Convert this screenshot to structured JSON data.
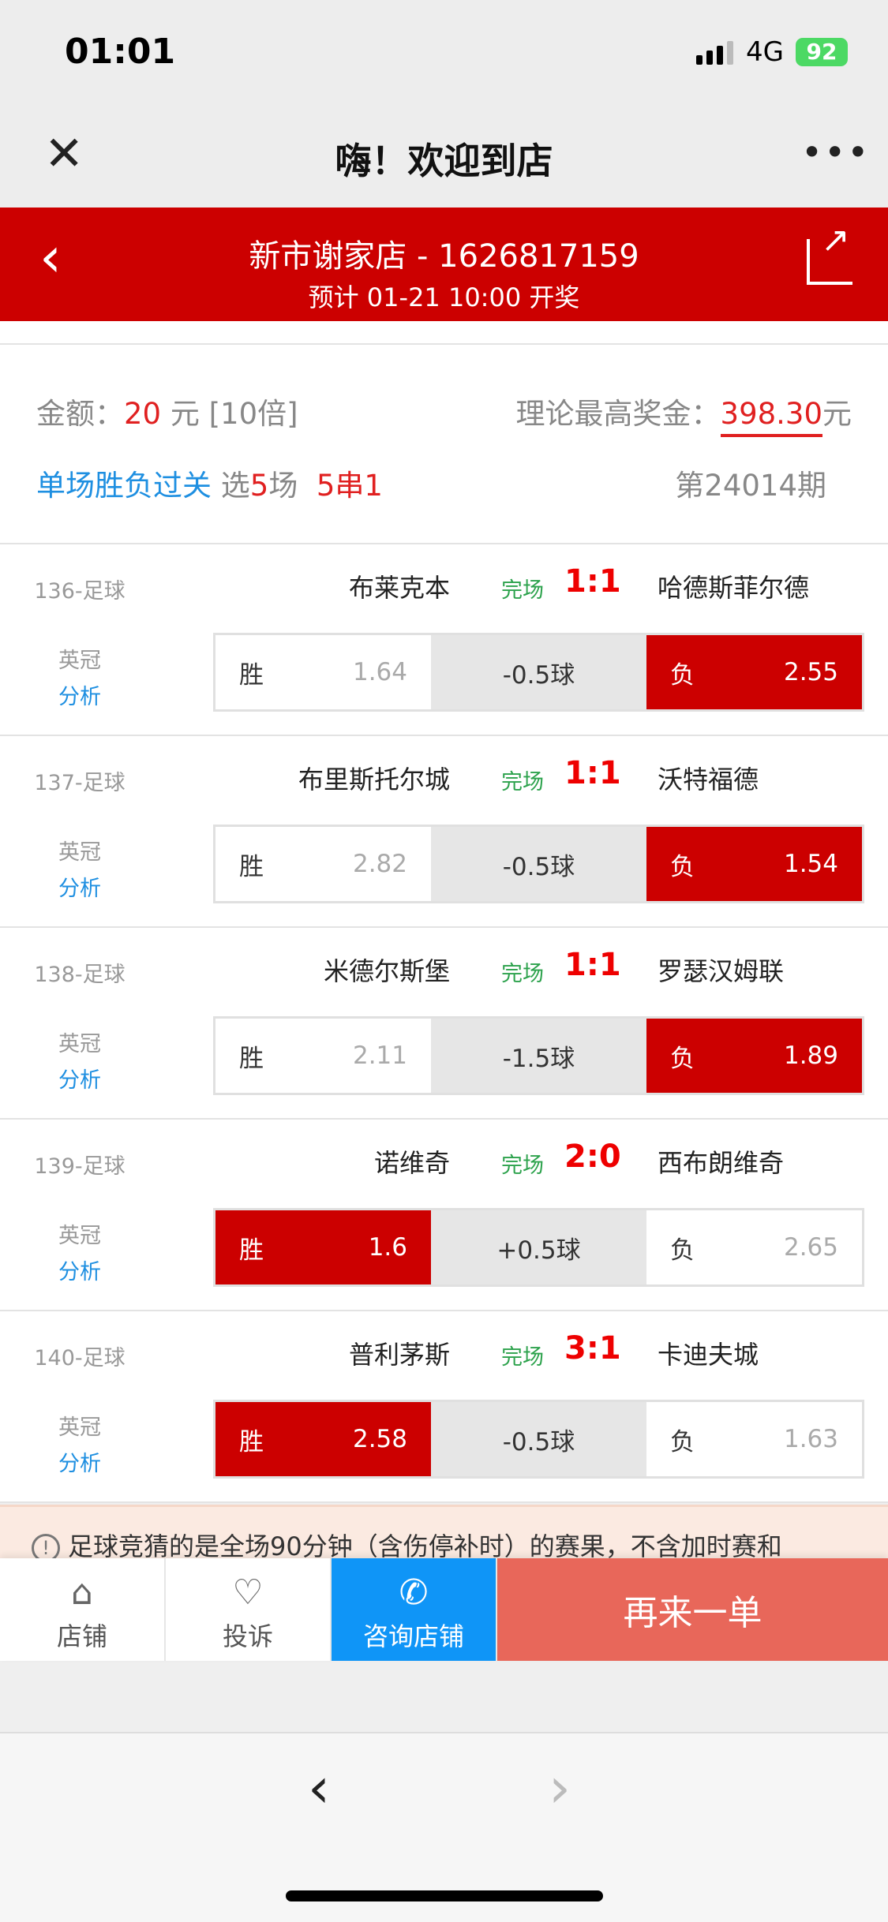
{
  "status_bar": {
    "time": "01:01",
    "network": "4G",
    "battery": "92"
  },
  "nav": {
    "title": "嗨！欢迎到店",
    "close_icon": "close-icon",
    "more_icon": "more-icon"
  },
  "header": {
    "shop": "新市谢家店 - 1626817159",
    "draw_time": "预计 01-21 10:00 开奖",
    "bg_color": "#cc0000"
  },
  "info": {
    "amount_label": "金额：",
    "amount": "20",
    "amount_unit": "元 [10倍]",
    "max_prize_label": "理论最高奖金：",
    "max_prize": "398.30",
    "max_prize_unit": "元",
    "play_type": "单场胜负过关",
    "select_prefix": "选",
    "select_count": "5",
    "select_suffix": "场",
    "combo": "5串1",
    "issue": "第24014期"
  },
  "matches": [
    {
      "code": "136-足球",
      "league": "英冠",
      "analysis": "分析",
      "home": "布莱克本",
      "status": "完场",
      "score": "1:1",
      "away": "哈德斯菲尔德",
      "win_label": "胜",
      "win_odds": "1.64",
      "handicap": "-0.5球",
      "lose_label": "负",
      "lose_odds": "2.55",
      "selected": "lose"
    },
    {
      "code": "137-足球",
      "league": "英冠",
      "analysis": "分析",
      "home": "布里斯托尔城",
      "status": "完场",
      "score": "1:1",
      "away": "沃特福德",
      "win_label": "胜",
      "win_odds": "2.82",
      "handicap": "-0.5球",
      "lose_label": "负",
      "lose_odds": "1.54",
      "selected": "lose"
    },
    {
      "code": "138-足球",
      "league": "英冠",
      "analysis": "分析",
      "home": "米德尔斯堡",
      "status": "完场",
      "score": "1:1",
      "away": "罗瑟汉姆联",
      "win_label": "胜",
      "win_odds": "2.11",
      "handicap": "-1.5球",
      "lose_label": "负",
      "lose_odds": "1.89",
      "selected": "lose"
    },
    {
      "code": "139-足球",
      "league": "英冠",
      "analysis": "分析",
      "home": "诺维奇",
      "status": "完场",
      "score": "2:0",
      "away": "西布朗维奇",
      "win_label": "胜",
      "win_odds": "1.6",
      "handicap": "+0.5球",
      "lose_label": "负",
      "lose_odds": "2.65",
      "selected": "win"
    },
    {
      "code": "140-足球",
      "league": "英冠",
      "analysis": "分析",
      "home": "普利茅斯",
      "status": "完场",
      "score": "3:1",
      "away": "卡迪夫城",
      "win_label": "胜",
      "win_odds": "2.58",
      "handicap": "-0.5球",
      "lose_label": "负",
      "lose_odds": "1.63",
      "selected": "win"
    }
  ],
  "notice": "足球竞猜的是全场90分钟（含伤停补时）的赛果，不含加时赛和",
  "bottom_bar": {
    "shop": "店铺",
    "complain": "投诉",
    "consult": "咨询店铺",
    "again": "再来一单"
  }
}
